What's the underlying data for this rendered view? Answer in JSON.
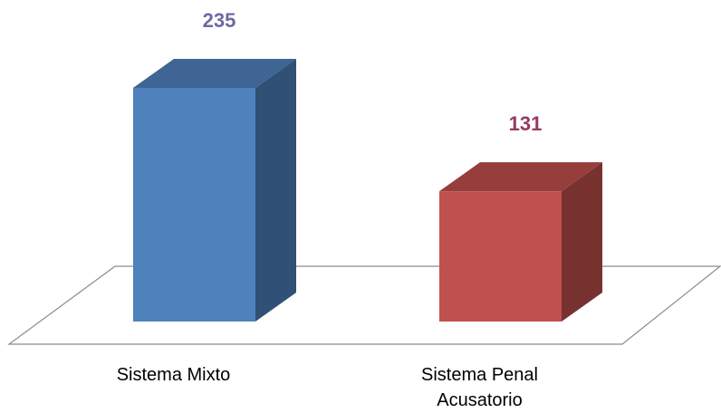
{
  "chart_data": {
    "type": "bar3d",
    "categories": [
      "Sistema Mixto",
      "Sistema Penal Acusatorio"
    ],
    "values": [
      235,
      131
    ],
    "colors": [
      "#4f81bd",
      "#c0504d"
    ],
    "value_label_colors": [
      "#6b6ba3",
      "#953a62"
    ]
  }
}
